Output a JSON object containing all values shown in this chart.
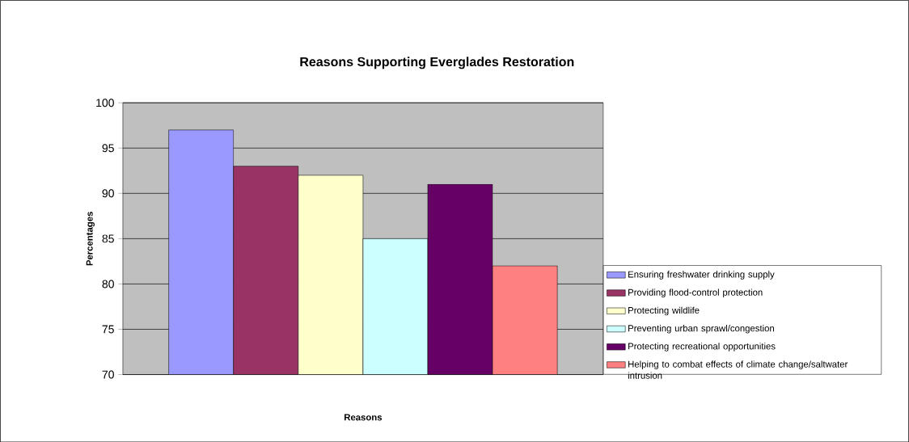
{
  "chart_data": {
    "type": "bar",
    "title": "Reasons Supporting Everglades Restoration",
    "xlabel": "Reasons",
    "ylabel": "Percentages",
    "categories": [
      null
    ],
    "series": [
      {
        "name": "Ensuring freshwater drinking supply",
        "color": "#9999ff",
        "values": [
          97
        ]
      },
      {
        "name": "Providing flood-control protection",
        "color": "#993366",
        "values": [
          93
        ]
      },
      {
        "name": "Protecting wildlife",
        "color": "#ffffcc",
        "values": [
          92
        ]
      },
      {
        "name": "Preventing urban sprawl/congestion",
        "color": "#ccffff",
        "values": [
          85
        ]
      },
      {
        "name": "Protecting recreational opportunities",
        "color": "#660066",
        "values": [
          91
        ]
      },
      {
        "name": "Helping to combat effects of climate change/saltwater intrusion",
        "color": "#ff8080",
        "values": [
          82
        ]
      }
    ],
    "ylim": [
      70,
      100
    ],
    "yticks": [
      70,
      75,
      80,
      85,
      90,
      95,
      100
    ],
    "grid": "y",
    "legend": "right"
  }
}
